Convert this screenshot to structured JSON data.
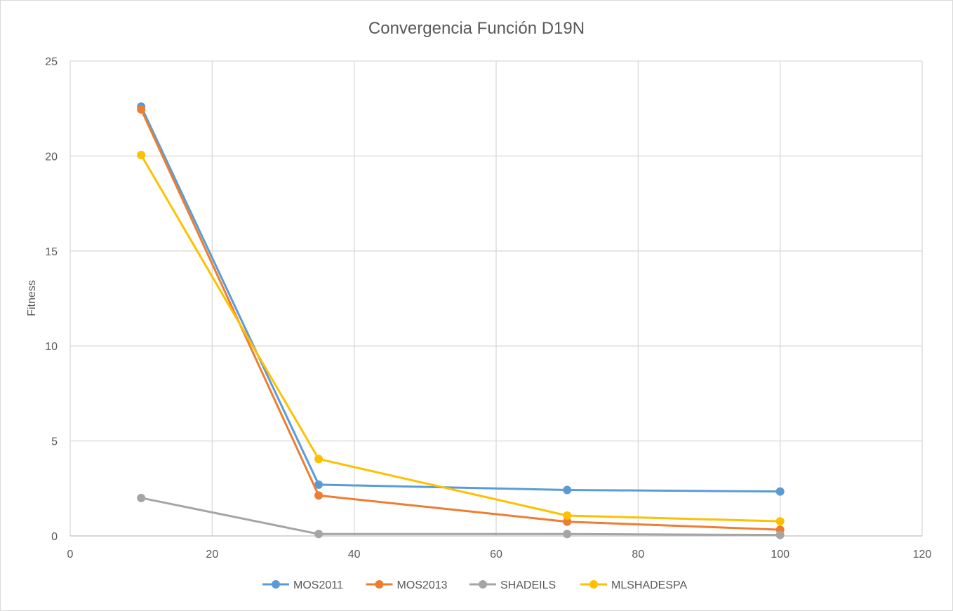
{
  "chart_data": {
    "type": "line",
    "title": "Convergencia Función D19N",
    "xlabel": "",
    "ylabel": "Fitness",
    "xlim": [
      0,
      120
    ],
    "ylim": [
      0,
      25
    ],
    "xticks": [
      0,
      20,
      40,
      60,
      80,
      100,
      120
    ],
    "yticks": [
      0,
      5,
      10,
      15,
      20,
      25
    ],
    "x": [
      10,
      35,
      70,
      100
    ],
    "grid": true,
    "legend_position": "bottom",
    "series": [
      {
        "name": "MOS2011",
        "color": "#5b9bd5",
        "values": [
          22.6,
          2.7,
          2.42,
          2.34
        ]
      },
      {
        "name": "MOS2013",
        "color": "#ed7d31",
        "values": [
          22.45,
          2.13,
          0.75,
          0.33
        ]
      },
      {
        "name": "SHADEILS",
        "color": "#a5a5a5",
        "values": [
          2.0,
          0.1,
          0.1,
          0.05
        ]
      },
      {
        "name": "MLSHADESPA",
        "color": "#ffc000",
        "values": [
          20.05,
          4.05,
          1.07,
          0.77
        ]
      }
    ]
  }
}
